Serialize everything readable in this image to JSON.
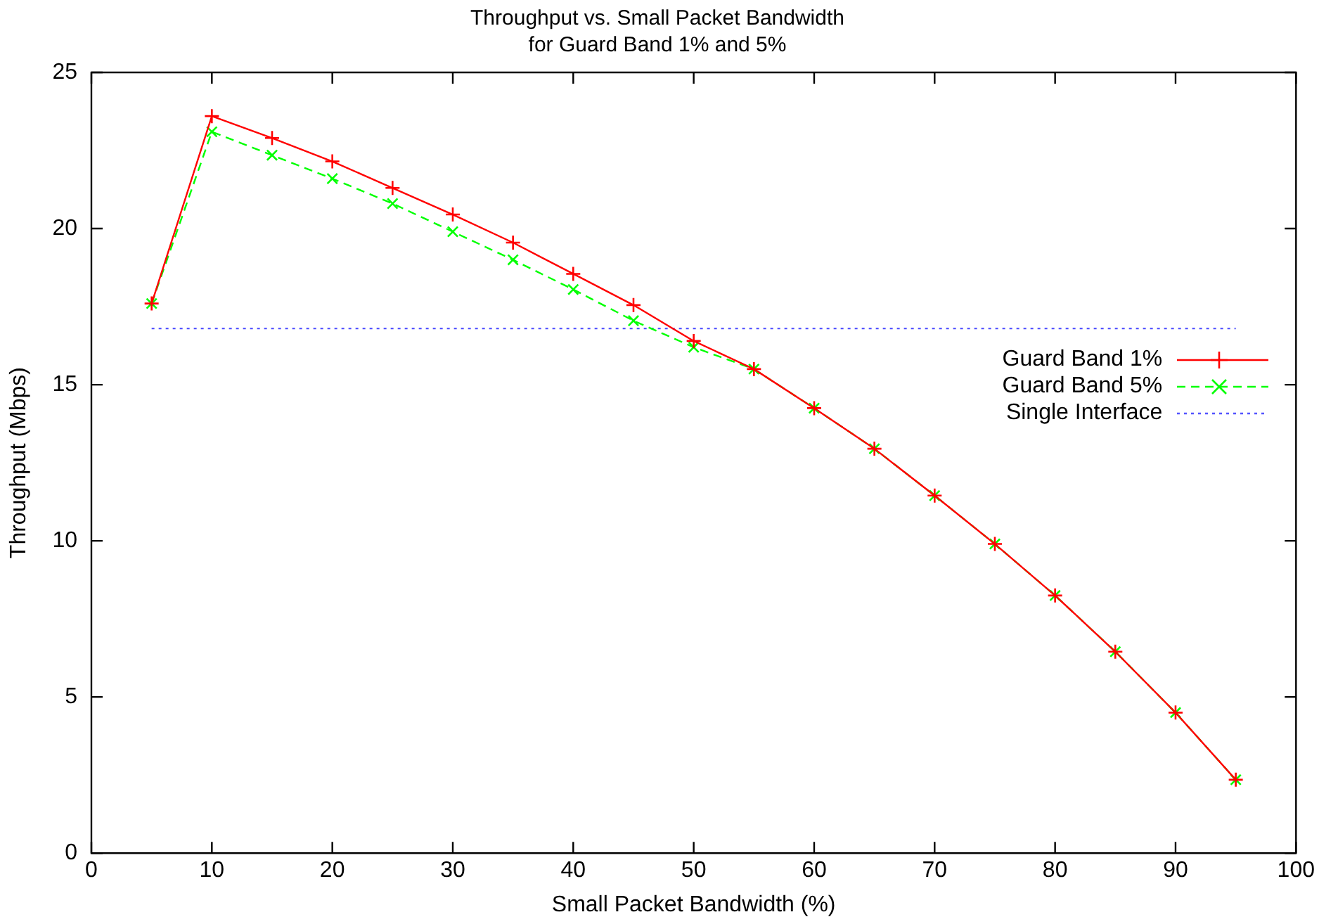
{
  "chart_data": {
    "type": "line",
    "title": "Throughput vs. Small Packet Bandwidth\nfor Guard Band 1% and 5%",
    "xlabel": "Small Packet Bandwidth (%)",
    "ylabel": "Throughput (Mbps)",
    "x": [
      5,
      10,
      15,
      20,
      25,
      30,
      35,
      40,
      45,
      50,
      55,
      60,
      65,
      70,
      75,
      80,
      85,
      90,
      95
    ],
    "series": [
      {
        "name": "Guard Band 1%",
        "color": "#ff0000",
        "marker": "cross",
        "line_style": "solid",
        "values": [
          17.6,
          23.6,
          22.9,
          22.15,
          21.3,
          20.45,
          19.55,
          18.55,
          17.55,
          16.4,
          15.5,
          14.25,
          12.95,
          11.45,
          9.9,
          8.25,
          6.45,
          4.5,
          2.35
        ]
      },
      {
        "name": "Guard Band 5%",
        "color": "#00ff00",
        "marker": "x",
        "line_style": "dashed",
        "values": [
          17.6,
          23.1,
          22.35,
          21.6,
          20.8,
          19.9,
          19.0,
          18.05,
          17.05,
          16.2,
          15.5,
          14.25,
          12.95,
          11.45,
          9.9,
          8.25,
          6.45,
          4.5,
          2.35
        ]
      },
      {
        "name": "Single Interface",
        "color": "#5555ff",
        "marker": "none",
        "line_style": "dotted",
        "x": [
          5,
          95
        ],
        "values": [
          16.8,
          16.8
        ]
      }
    ],
    "xlim": [
      0,
      100
    ],
    "xticks": [
      0,
      10,
      20,
      30,
      40,
      50,
      60,
      70,
      80,
      90,
      100
    ],
    "ylim": [
      0,
      25
    ],
    "yticks": [
      0,
      5,
      10,
      15,
      20,
      25
    ],
    "grid": false,
    "legend": "right"
  }
}
